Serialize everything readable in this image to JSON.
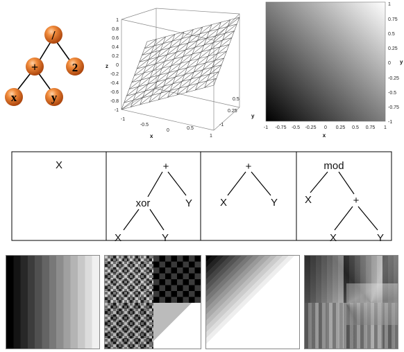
{
  "expression_tree": {
    "root": "/",
    "plus": "+",
    "divisor": "2",
    "left_leaf": "x",
    "right_leaf": "y",
    "node_color": "#e3701f"
  },
  "surface_plot": {
    "z_ticks": [
      "1",
      "0.8",
      "0.6",
      "0.4",
      "0.2",
      "0",
      "-0.2",
      "-0.4",
      "-0.6",
      "-0.8",
      "-1"
    ],
    "x_ticks": [
      "-1",
      "-0.5",
      "0",
      "0.5",
      "1"
    ],
    "y_ticks": [
      "0.5",
      "0.25",
      "-1"
    ],
    "z_label": "z",
    "x_label": "x",
    "y_label": "y"
  },
  "gradient_plot": {
    "right_ticks": [
      "1",
      "0.75",
      "0.5",
      "0.25",
      "0",
      "-0.25",
      "-0.5",
      "-0.75",
      "-1"
    ],
    "bottom_ticks": [
      "-1",
      "-0.75",
      "-0.5",
      "-0.25",
      "0",
      "0.25",
      "0.5",
      "0.75",
      "1"
    ],
    "x_label": "x",
    "y_label": "y"
  },
  "expression_panels": [
    {
      "nodes": [
        "X"
      ]
    },
    {
      "nodes": [
        "+",
        "xor",
        "Y",
        "X",
        "Y"
      ]
    },
    {
      "nodes": [
        "+",
        "X",
        "Y"
      ]
    },
    {
      "nodes": [
        "mod",
        "X",
        "+",
        "X",
        "Y"
      ]
    }
  ]
}
